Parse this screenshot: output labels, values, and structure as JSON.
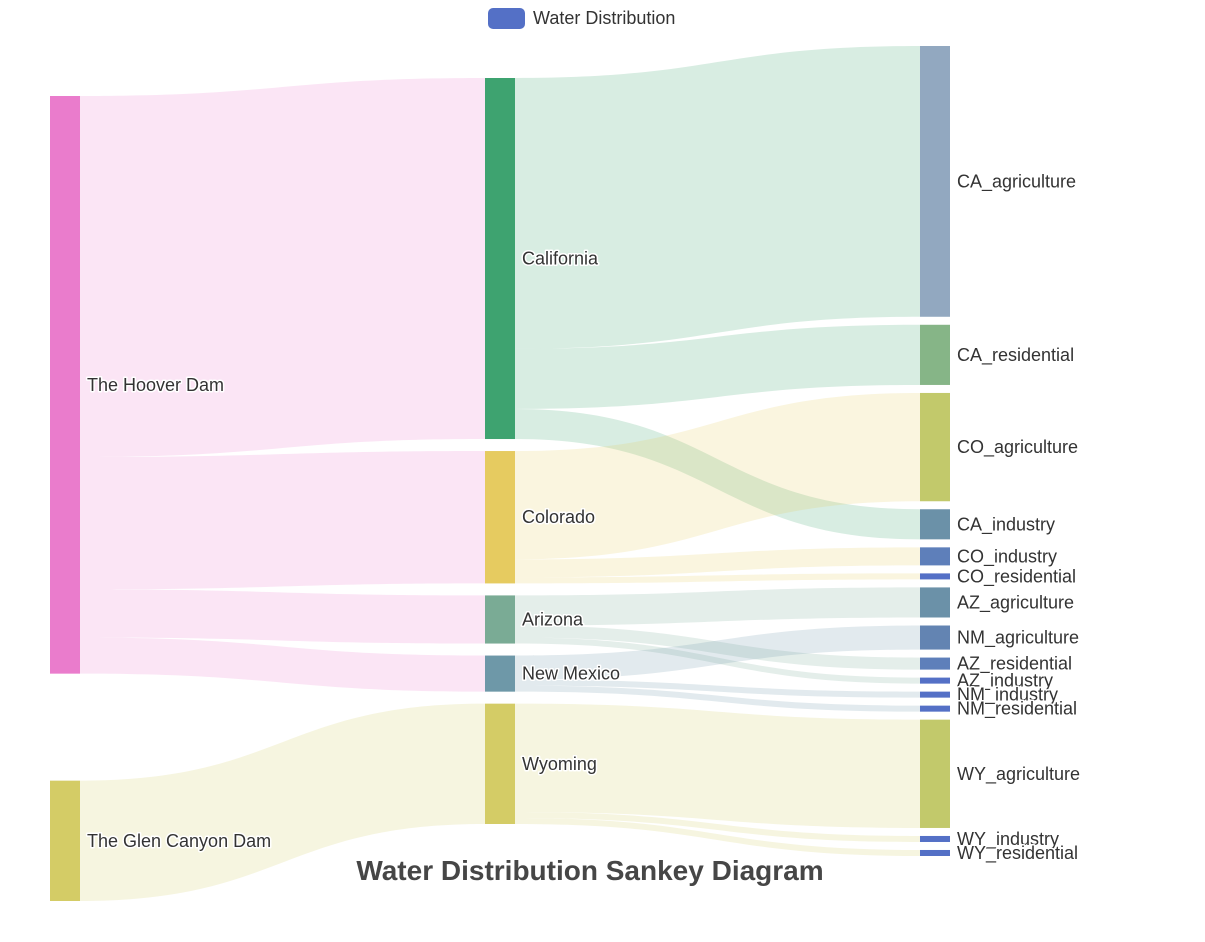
{
  "legend": {
    "label": "Water Distribution",
    "color": "#5470c6"
  },
  "title": "Water Distribution Sankey Diagram",
  "chart_data": {
    "type": "sankey",
    "nodes": [
      {
        "name": "The Hoover Dam",
        "color": "#ea7ccc"
      },
      {
        "name": "The Glen Canyon Dam",
        "color": "#d4cc66"
      },
      {
        "name": "California",
        "color": "#3ea370"
      },
      {
        "name": "Colorado",
        "color": "#e6cb60"
      },
      {
        "name": "Arizona",
        "color": "#7aab95"
      },
      {
        "name": "New Mexico",
        "color": "#6e98a8"
      },
      {
        "name": "Wyoming",
        "color": "#d4cc66"
      },
      {
        "name": "CA_agriculture",
        "color": "#92a8c0"
      },
      {
        "name": "CA_residential",
        "color": "#86b587"
      },
      {
        "name": "CO_agriculture",
        "color": "#c2c96b"
      },
      {
        "name": "CA_industry",
        "color": "#6b91a8"
      },
      {
        "name": "CO_industry",
        "color": "#5e7fba"
      },
      {
        "name": "CO_residential",
        "color": "#5470c6"
      },
      {
        "name": "AZ_agriculture",
        "color": "#6b91a8"
      },
      {
        "name": "NM_agriculture",
        "color": "#6384b2"
      },
      {
        "name": "AZ_residential",
        "color": "#5e7fba"
      },
      {
        "name": "AZ_industry",
        "color": "#5470c6"
      },
      {
        "name": "NM_industry",
        "color": "#5470c6"
      },
      {
        "name": "NM_residential",
        "color": "#5470c6"
      },
      {
        "name": "WY_agriculture",
        "color": "#c2c96b"
      },
      {
        "name": "WY_industry",
        "color": "#5470c6"
      },
      {
        "name": "WY_residential",
        "color": "#5470c6"
      }
    ],
    "links": [
      {
        "source": "The Hoover Dam",
        "target": "California",
        "value": 300
      },
      {
        "source": "The Hoover Dam",
        "target": "Colorado",
        "value": 110
      },
      {
        "source": "The Hoover Dam",
        "target": "Arizona",
        "value": 40
      },
      {
        "source": "The Hoover Dam",
        "target": "New Mexico",
        "value": 30
      },
      {
        "source": "The Glen Canyon Dam",
        "target": "Wyoming",
        "value": 100
      },
      {
        "source": "California",
        "target": "CA_agriculture",
        "value": 225
      },
      {
        "source": "California",
        "target": "CA_residential",
        "value": 50
      },
      {
        "source": "California",
        "target": "CA_industry",
        "value": 25
      },
      {
        "source": "Colorado",
        "target": "CO_agriculture",
        "value": 90
      },
      {
        "source": "Colorado",
        "target": "CO_industry",
        "value": 15
      },
      {
        "source": "Colorado",
        "target": "CO_residential",
        "value": 5
      },
      {
        "source": "Arizona",
        "target": "AZ_agriculture",
        "value": 25
      },
      {
        "source": "Arizona",
        "target": "AZ_residential",
        "value": 10
      },
      {
        "source": "Arizona",
        "target": "AZ_industry",
        "value": 5
      },
      {
        "source": "New Mexico",
        "target": "NM_agriculture",
        "value": 20
      },
      {
        "source": "New Mexico",
        "target": "NM_industry",
        "value": 5
      },
      {
        "source": "New Mexico",
        "target": "NM_residential",
        "value": 5
      },
      {
        "source": "Wyoming",
        "target": "WY_agriculture",
        "value": 90
      },
      {
        "source": "Wyoming",
        "target": "WY_industry",
        "value": 5
      },
      {
        "source": "Wyoming",
        "target": "WY_residential",
        "value": 5
      }
    ]
  }
}
